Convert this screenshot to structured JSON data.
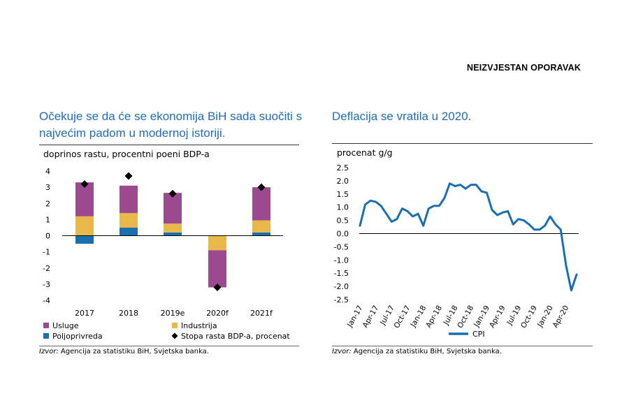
{
  "header": {
    "title": "NEIZVJESTAN OPORAVAK"
  },
  "left": {
    "title": "Očekuje se da će se ekonomija BiH sada suočiti s najvećim padom u modernoj istoriji.",
    "source_prefix": "Izvor:",
    "source_text": "Agencija za statistiku BiH, Svjetska banka."
  },
  "right": {
    "title": "Deflacija se vratila u 2020.",
    "source_prefix": "Izvor:",
    "source_text": "Agencija za statistiku BiH, Svjetska banka."
  },
  "colors": {
    "usluge": "#9b4a8f",
    "industrija": "#e8b84a",
    "poljoprivreda": "#1a6fb0",
    "marker": "#000000",
    "cpi": "#1a6fb0",
    "title": "#1f6db5"
  },
  "chart_data": [
    {
      "type": "bar",
      "stacked": true,
      "title": "",
      "ylabel": "doprinos rastu, procentni poeni BDP-a",
      "ylim": [
        -4,
        4
      ],
      "yticks": [
        4,
        3,
        2,
        1,
        0,
        -1,
        -2,
        -3,
        -4
      ],
      "categories": [
        "2017",
        "2018",
        "2019e",
        "2020f",
        "2021f"
      ],
      "series": [
        {
          "name": "Poljoprivreda",
          "key": "poljoprivreda",
          "values": [
            -0.5,
            0.5,
            0.2,
            0.0,
            0.2
          ]
        },
        {
          "name": "Industrija",
          "key": "industrija",
          "values": [
            1.2,
            0.9,
            0.55,
            -0.9,
            0.75
          ]
        },
        {
          "name": "Usluge",
          "key": "usluge",
          "values": [
            2.1,
            1.7,
            1.9,
            -2.3,
            2.05
          ]
        }
      ],
      "markers": {
        "name": "Stopa rasta BDP-a, procenat",
        "values": [
          3.2,
          3.7,
          2.6,
          -3.2,
          3.0
        ]
      },
      "legend": [
        "Usluge",
        "Industrija",
        "Poljoprivreda",
        "Stopa rasta BDP-a, procenat"
      ],
      "legend_position": "bottom"
    },
    {
      "type": "line",
      "title": "",
      "ylabel": "procenat g/g",
      "ylim": [
        -2.5,
        2.5
      ],
      "yticks": [
        "2.5",
        "2.0",
        "1.5",
        "1.0",
        "0.5",
        "0.0",
        "-0.5",
        "-1.0",
        "-1.5",
        "-2.0",
        "-2.5"
      ],
      "xticks": [
        "Jan-17",
        "Apr-17",
        "Jul-17",
        "Oct-17",
        "Jan-18",
        "Apr-18",
        "Jul-18",
        "Oct-18",
        "Jan-19",
        "Apr-19",
        "Jul-19",
        "Oct-19",
        "Jan-20",
        "Apr-20"
      ],
      "series": [
        {
          "name": "CPI",
          "values": [
            0.3,
            1.1,
            1.25,
            1.2,
            1.05,
            0.75,
            0.45,
            0.55,
            0.95,
            0.85,
            0.65,
            0.75,
            0.3,
            0.95,
            1.05,
            1.05,
            1.35,
            1.9,
            1.8,
            1.85,
            1.7,
            1.85,
            1.85,
            1.6,
            1.55,
            0.9,
            0.7,
            0.8,
            0.85,
            0.35,
            0.55,
            0.5,
            0.35,
            0.15,
            0.15,
            0.3,
            0.65,
            0.35,
            0.15,
            -1.2,
            -2.15,
            -1.55
          ]
        }
      ],
      "legend": [
        "CPI"
      ],
      "legend_position": "bottom"
    }
  ]
}
